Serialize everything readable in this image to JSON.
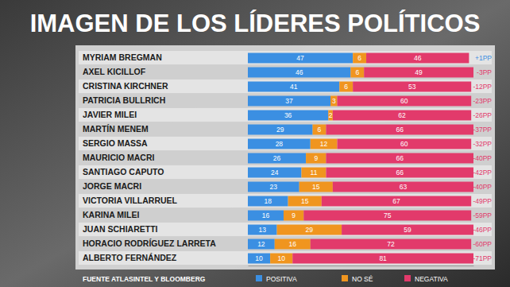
{
  "chart_data": {
    "type": "bar",
    "title": "IMAGEN DE LOS LÍDERES POLÍTICOS",
    "source": "FUENTE ATLASINTEL Y BLOOMBERG",
    "orientation": "horizontal",
    "stacked": true,
    "data_labels": true,
    "tick_labels": "y",
    "legend": "bottom",
    "xlim": [
      0,
      101
    ],
    "categories": [
      "MYRIAM BREGMAN",
      "AXEL KICILLOF",
      "CRISTINA KIRCHNER",
      "PATRICIA BULLRICH",
      "JAVIER MILEI",
      "MARTÍN MENEM",
      "SERGIO MASSA",
      "MAURICIO MACRI",
      "SANTIAGO CAPUTO",
      "JORGE MACRI",
      "VICTORIA VILLARRUEL",
      "KARINA MILEI",
      "JUAN SCHIARETTI",
      "HORACIO RODRÍGUEZ LARRETA",
      "ALBERTO FERNÁNDEZ"
    ],
    "series": [
      {
        "name": "POSITIVA",
        "color": "#3b8fe2",
        "values": [
          47,
          46,
          41,
          37,
          36,
          29,
          28,
          26,
          24,
          23,
          18,
          16,
          13,
          12,
          10
        ]
      },
      {
        "name": "NO SÉ",
        "color": "#f0951f",
        "values": [
          6,
          6,
          6,
          3,
          2,
          6,
          12,
          9,
          11,
          15,
          15,
          9,
          29,
          16,
          10
        ]
      },
      {
        "name": "NEGATIVA",
        "color": "#e23a6b",
        "values": [
          46,
          49,
          53,
          60,
          62,
          66,
          60,
          66,
          66,
          63,
          67,
          75,
          59,
          72,
          81
        ]
      }
    ],
    "annotations": [
      "+1PP",
      "-3PP",
      "-12PP",
      "-23PP",
      "-26PP",
      "-37PP",
      "-32PP",
      "-40PP",
      "-42PP",
      "-40PP",
      "-49PP",
      "-59PP",
      "-46PP",
      "-60PP",
      "-71PP"
    ]
  }
}
